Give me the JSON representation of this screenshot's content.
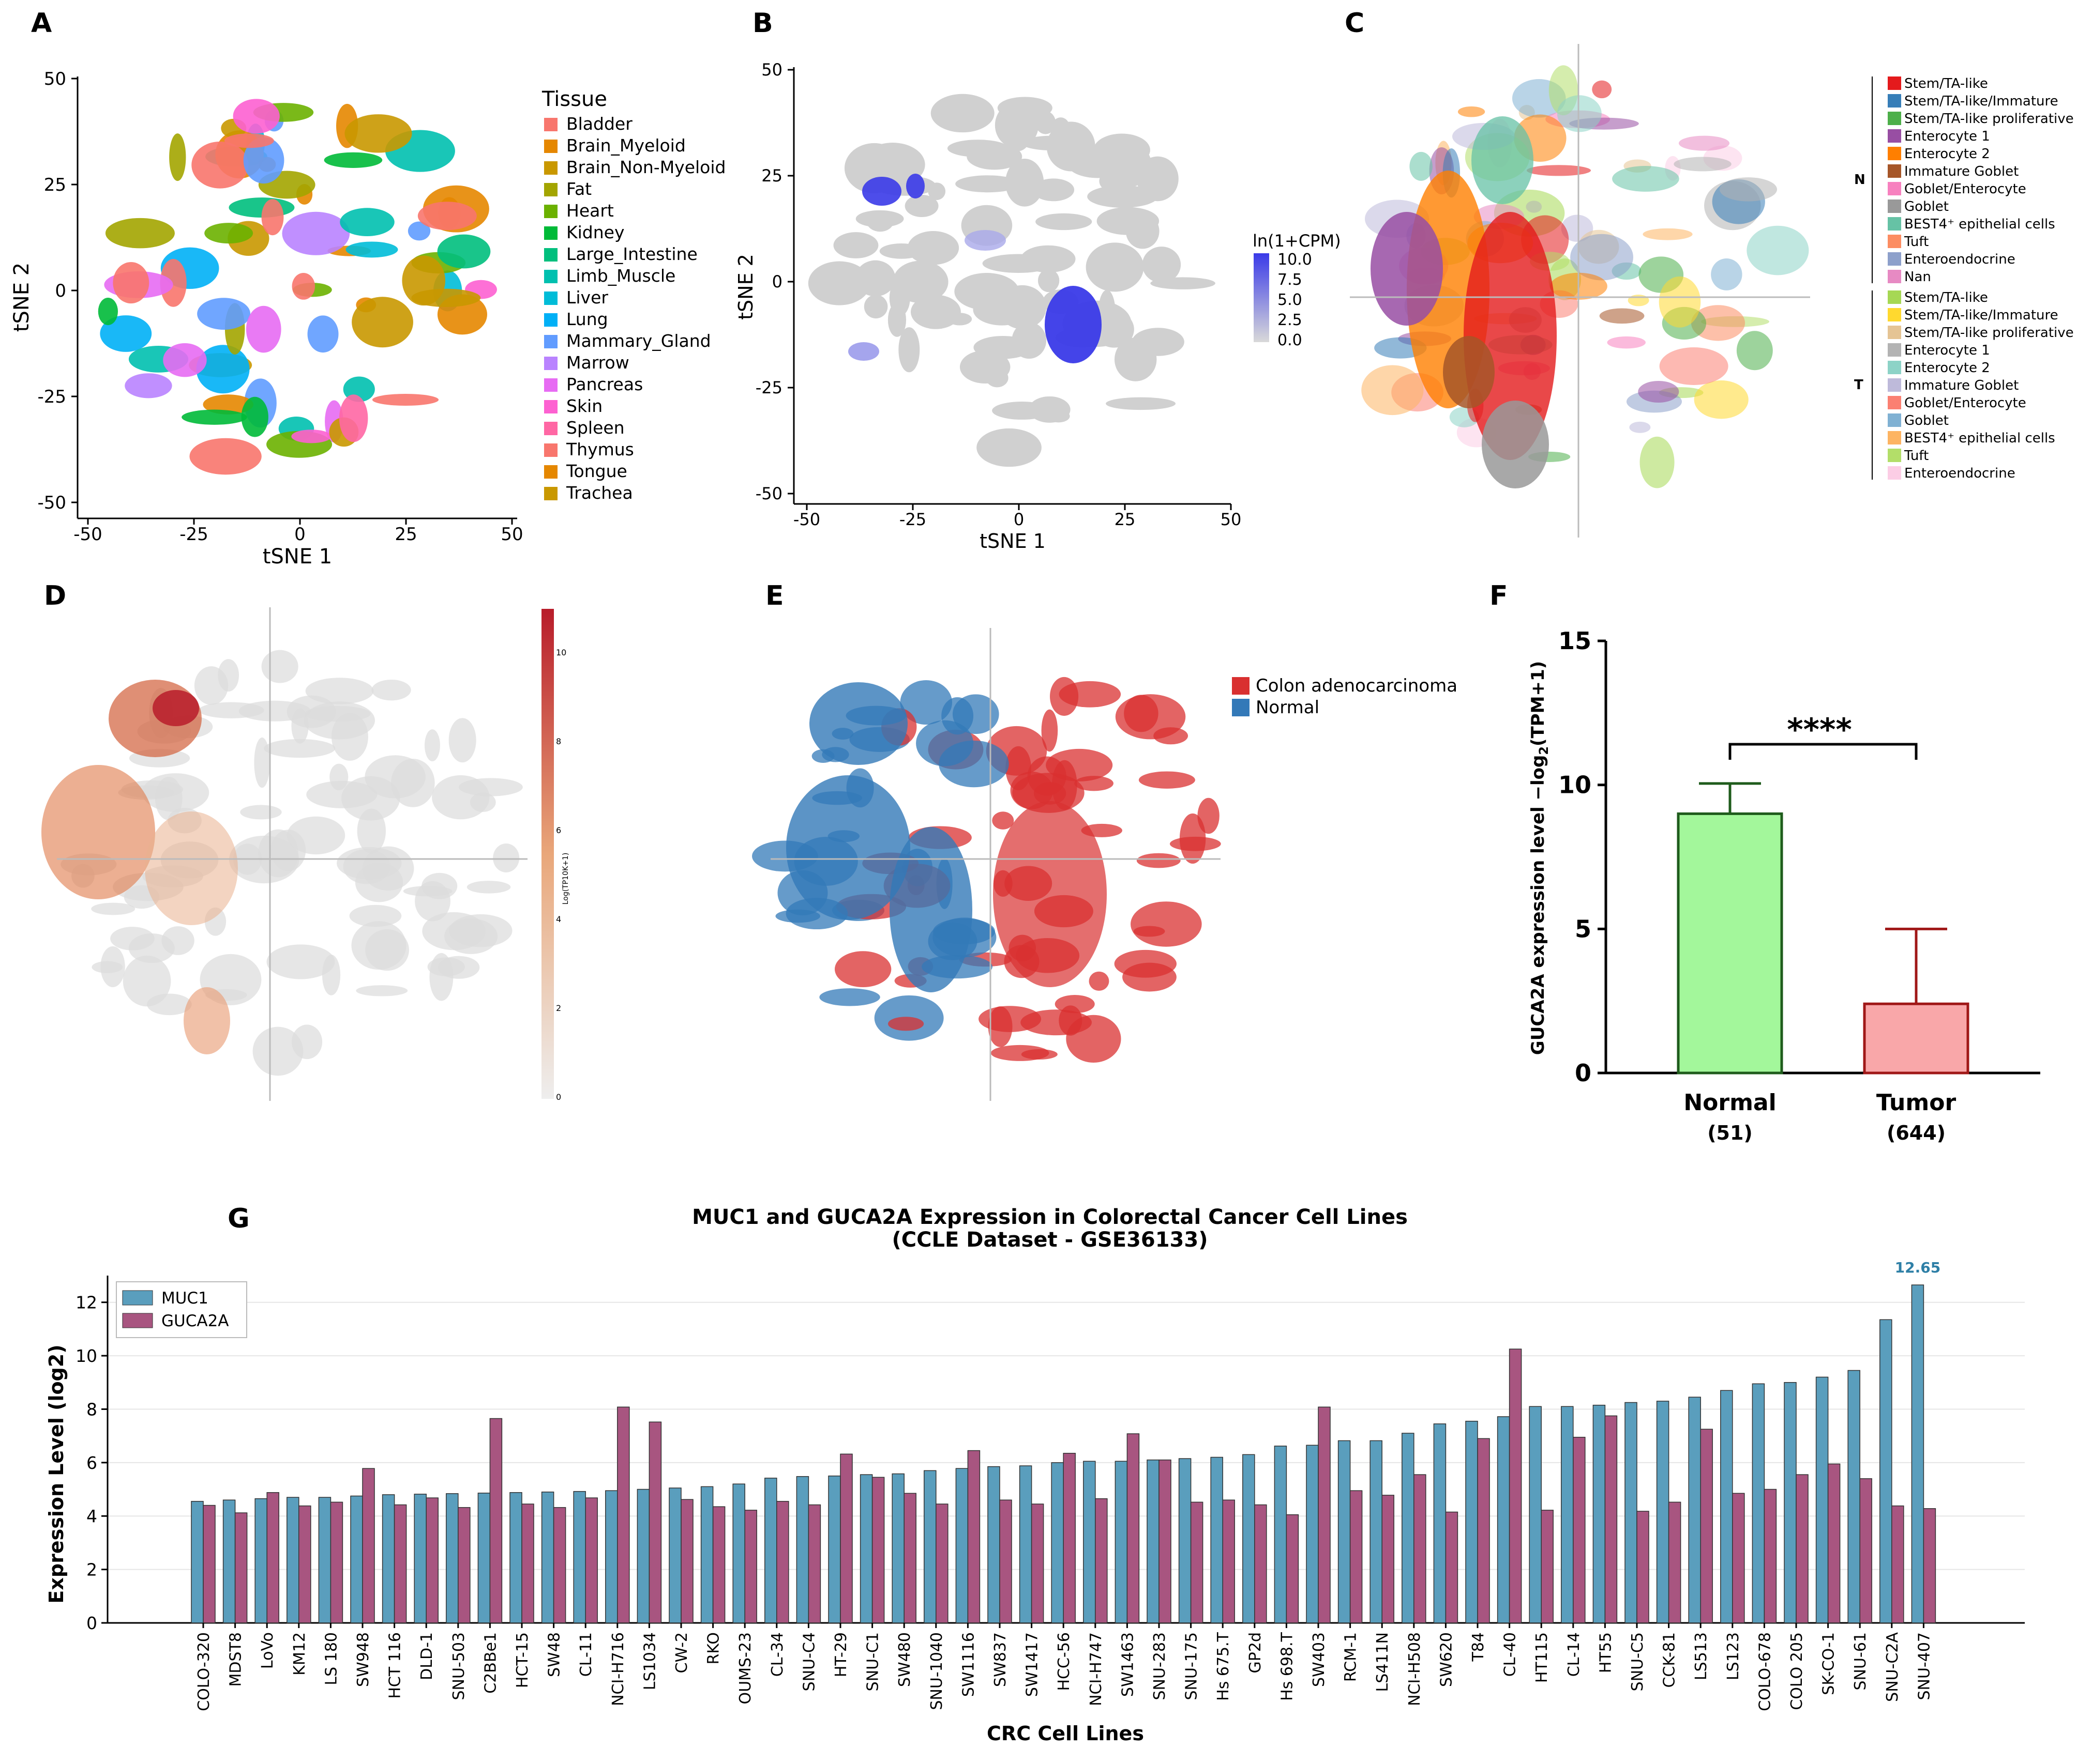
{
  "panel_letters": {
    "A": "A",
    "B": "B",
    "C": "C",
    "D": "D",
    "E": "E",
    "F": "F",
    "G": "G"
  },
  "colors": {
    "muc1": "#5a9ebd",
    "guca2a": "#a85580",
    "normal_bar": "#a3f79b",
    "normal_edge": "#1f5c1c",
    "tumor_bar": "#f9a7a9",
    "tumor_edge": "#a01818",
    "scatter_gray": "#d0d0d0",
    "expr_blue": "#3a3ae8",
    "adeno_red": "#d93030",
    "normal_blue": "#3379b8",
    "d_red": "#b81c2a",
    "d_orange": "#e07a4a"
  },
  "chart_data": [
    {
      "panel": "A",
      "type": "scatter",
      "xlabel": "tSNE 1",
      "ylabel": "tSNE 2",
      "xticks": [
        "-50",
        "-25",
        "0",
        "25",
        "50"
      ],
      "yticks": [
        "50",
        "25",
        "0",
        "-25",
        "-50"
      ],
      "xlim": [
        -50,
        50
      ],
      "ylim": [
        -50,
        50
      ],
      "legend_title": "Tissue",
      "legend": [
        {
          "label": "Bladder",
          "color": "#f8766d"
        },
        {
          "label": "Brain_Myeloid",
          "color": "#e58700"
        },
        {
          "label": "Brain_Non-Myeloid",
          "color": "#c99800"
        },
        {
          "label": "Fat",
          "color": "#a3a500"
        },
        {
          "label": "Heart",
          "color": "#6bb100"
        },
        {
          "label": "Kidney",
          "color": "#00ba38"
        },
        {
          "label": "Large_Intestine",
          "color": "#00bf7d"
        },
        {
          "label": "Limb_Muscle",
          "color": "#00c0af"
        },
        {
          "label": "Liver",
          "color": "#00bcd8"
        },
        {
          "label": "Lung",
          "color": "#00b0f6"
        },
        {
          "label": "Mammary_Gland",
          "color": "#619cff"
        },
        {
          "label": "Marrow",
          "color": "#b983ff"
        },
        {
          "label": "Pancreas",
          "color": "#e76bf3"
        },
        {
          "label": "Skin",
          "color": "#fd61d1"
        },
        {
          "label": "Spleen",
          "color": "#ff67a4"
        },
        {
          "label": "Thymus",
          "color": "#f8766d"
        },
        {
          "label": "Tongue",
          "color": "#e58700"
        },
        {
          "label": "Trachea",
          "color": "#c99800"
        }
      ]
    },
    {
      "panel": "B",
      "type": "scatter",
      "xlabel": "tSNE 1",
      "ylabel": "tSNE 2",
      "xticks": [
        "-50",
        "-25",
        "0",
        "25",
        "50"
      ],
      "yticks": [
        "50",
        "25",
        "0",
        "-25",
        "-50"
      ],
      "xlim": [
        -50,
        50
      ],
      "ylim": [
        -50,
        50
      ],
      "colorbar_title": "ln(1+CPM)",
      "colorbar_ticks": [
        "10.0",
        "7.5",
        "5.0",
        "2.5",
        "0.0"
      ]
    },
    {
      "panel": "C",
      "type": "scatter",
      "groups": [
        {
          "label": "N",
          "items": [
            {
              "label": "Stem/TA-like",
              "color": "#e41a1c"
            },
            {
              "label": "Stem/TA-like/Immature",
              "color": "#377eb8"
            },
            {
              "label": "Stem/TA-like proliferative",
              "color": "#4daf4a"
            },
            {
              "label": "Enterocyte 1",
              "color": "#984ea3"
            },
            {
              "label": "Enterocyte 2",
              "color": "#ff7f00"
            },
            {
              "label": "Immature Goblet",
              "color": "#a65628"
            },
            {
              "label": "Goblet/Enterocyte",
              "color": "#f781bf"
            },
            {
              "label": "Goblet",
              "color": "#999999"
            },
            {
              "label": "BEST4⁺ epithelial cells",
              "color": "#66c2a5"
            },
            {
              "label": "Tuft",
              "color": "#fc8d62"
            },
            {
              "label": "Enteroendocrine",
              "color": "#8da0cb"
            },
            {
              "label": "Nan",
              "color": "#e78ac3"
            }
          ]
        },
        {
          "label": "T",
          "items": [
            {
              "label": "Stem/TA-like",
              "color": "#a6d854"
            },
            {
              "label": "Stem/TA-like/Immature",
              "color": "#ffd92f"
            },
            {
              "label": "Stem/TA-like proliferative",
              "color": "#e5c494"
            },
            {
              "label": "Enterocyte 1",
              "color": "#b3b3b3"
            },
            {
              "label": "Enterocyte 2",
              "color": "#8dd3c7"
            },
            {
              "label": "Immature Goblet",
              "color": "#bebada"
            },
            {
              "label": "Goblet/Enterocyte",
              "color": "#fb8072"
            },
            {
              "label": "Goblet",
              "color": "#80b1d3"
            },
            {
              "label": "BEST4⁺ epithelial cells",
              "color": "#fdb462"
            },
            {
              "label": "Tuft",
              "color": "#b3de69"
            },
            {
              "label": "Enteroendocrine",
              "color": "#fccde5"
            }
          ]
        }
      ]
    },
    {
      "panel": "D",
      "type": "scatter",
      "colorbar_title": "Log(TP10K+1)",
      "colorbar_ticks": [
        "10",
        "8",
        "6",
        "4",
        "2",
        "0"
      ]
    },
    {
      "panel": "E",
      "type": "scatter",
      "legend": [
        {
          "label": "Colon adenocarcinoma",
          "color": "#d93030"
        },
        {
          "label": "Normal",
          "color": "#3379b8"
        }
      ]
    },
    {
      "panel": "F",
      "type": "bar",
      "ylabel_main": "GUCA2A expression level −log",
      "ylabel_sub": "2",
      "ylabel_tail": "(TPM+1)",
      "ylim": [
        0,
        15
      ],
      "yticks": [
        "0",
        "5",
        "10",
        "15"
      ],
      "categories": [
        "Normal",
        "Tumor"
      ],
      "counts": [
        "(51)",
        "(644)"
      ],
      "values": [
        9.0,
        2.4
      ],
      "errors": [
        1.05,
        2.6
      ],
      "significance": "****"
    },
    {
      "panel": "G",
      "type": "bar",
      "title_line1": "MUC1 and GUCA2A Expression in Colorectal Cancer Cell Lines",
      "title_line2": "(CCLE Dataset - GSE36133)",
      "xlabel": "CRC Cell Lines",
      "ylabel": "Expression Level (log2)",
      "ylim": [
        0,
        13
      ],
      "yticks": [
        "0",
        "2",
        "4",
        "6",
        "8",
        "10",
        "12"
      ],
      "max_label": "12.65",
      "series": [
        {
          "name": "MUC1",
          "color": "#5a9ebd"
        },
        {
          "name": "GUCA2A",
          "color": "#a85580"
        }
      ],
      "categories": [
        "COLO-320",
        "MDST8",
        "LoVo",
        "KM12",
        "LS 180",
        "SW948",
        "HCT 116",
        "DLD-1",
        "SNU-503",
        "C2BBe1",
        "HCT-15",
        "SW48",
        "CL-11",
        "NCI-H716",
        "LS1034",
        "CW-2",
        "RKO",
        "OUMS-23",
        "CL-34",
        "SNU-C4",
        "HT-29",
        "SNU-C1",
        "SW480",
        "SNU-1040",
        "SW1116",
        "SW837",
        "SW1417",
        "HCC-56",
        "NCI-H747",
        "SW1463",
        "SNU-283",
        "SNU-175",
        "Hs 675.T",
        "GP2d",
        "Hs 698.T",
        "SW403",
        "RCM-1",
        "LS411N",
        "NCI-H508",
        "SW620",
        "T84",
        "CL-40",
        "HT115",
        "CL-14",
        "HT55",
        "SNU-C5",
        "CCK-81",
        "LS513",
        "LS123",
        "COLO-678",
        "COLO 205",
        "SK-CO-1",
        "SNU-61",
        "SNU-C2A",
        "SNU-407"
      ],
      "muc1": [
        4.55,
        4.6,
        4.65,
        4.7,
        4.7,
        4.75,
        4.8,
        4.82,
        4.84,
        4.86,
        4.88,
        4.9,
        4.92,
        4.95,
        5.0,
        5.05,
        5.1,
        5.2,
        5.42,
        5.48,
        5.5,
        5.55,
        5.58,
        5.7,
        5.78,
        5.85,
        5.88,
        6.0,
        6.05,
        6.05,
        6.1,
        6.15,
        6.2,
        6.3,
        6.62,
        6.65,
        6.82,
        6.82,
        7.1,
        7.45,
        7.55,
        7.72,
        8.1,
        8.1,
        8.15,
        8.25,
        8.3,
        8.45,
        8.7,
        8.95,
        9.0,
        9.2,
        9.45,
        11.35,
        12.65
      ],
      "guca2a": [
        4.4,
        4.12,
        4.88,
        4.38,
        4.52,
        5.78,
        4.42,
        4.68,
        4.32,
        7.65,
        4.45,
        4.32,
        4.68,
        8.08,
        7.52,
        4.62,
        4.35,
        4.22,
        4.55,
        4.42,
        6.32,
        5.45,
        4.85,
        4.45,
        6.45,
        4.6,
        4.45,
        6.35,
        4.65,
        7.08,
        6.1,
        4.52,
        4.6,
        4.42,
        4.05,
        8.08,
        4.95,
        4.78,
        5.55,
        4.15,
        6.9,
        10.25,
        4.22,
        6.95,
        7.75,
        4.18,
        4.52,
        7.25,
        4.85,
        5.0,
        5.55,
        5.95,
        5.4,
        4.38,
        4.28
      ]
    }
  ]
}
